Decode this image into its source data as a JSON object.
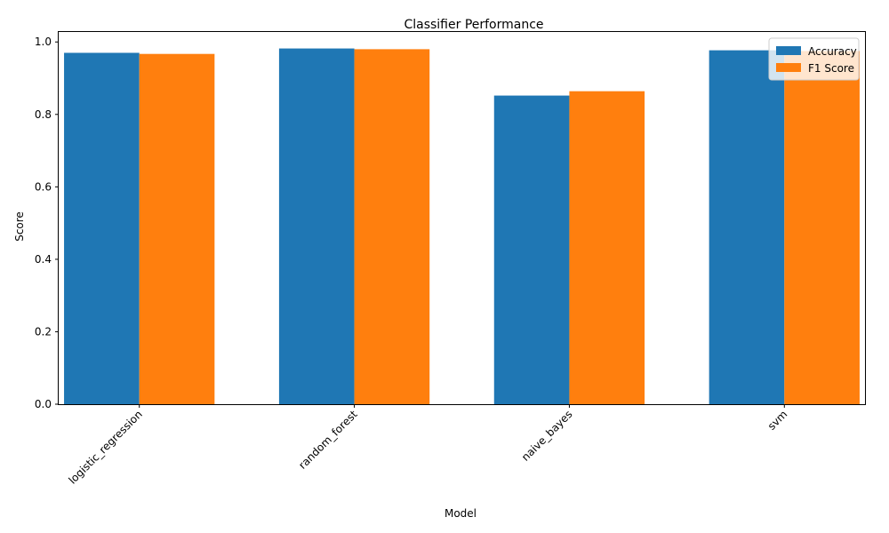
{
  "chart_data": {
    "type": "bar",
    "title": "Classifier Performance",
    "xlabel": "Model",
    "ylabel": "Score",
    "categories": [
      "logistic_regression",
      "random_forest",
      "naive_bayes",
      "svm"
    ],
    "series": [
      {
        "name": "Accuracy",
        "color": "#1f77b4",
        "values": [
          0.97,
          0.982,
          0.852,
          0.977
        ]
      },
      {
        "name": "F1 Score",
        "color": "#ff7f0e",
        "values": [
          0.967,
          0.98,
          0.864,
          0.975
        ]
      }
    ],
    "ylim": [
      0,
      1.03
    ],
    "yticks": [
      0.0,
      0.2,
      0.4,
      0.6,
      0.8,
      1.0
    ],
    "ytick_labels": [
      "0.0",
      "0.2",
      "0.4",
      "0.6",
      "0.8",
      "1.0"
    ],
    "grid": false,
    "legend_position": "top-right"
  }
}
